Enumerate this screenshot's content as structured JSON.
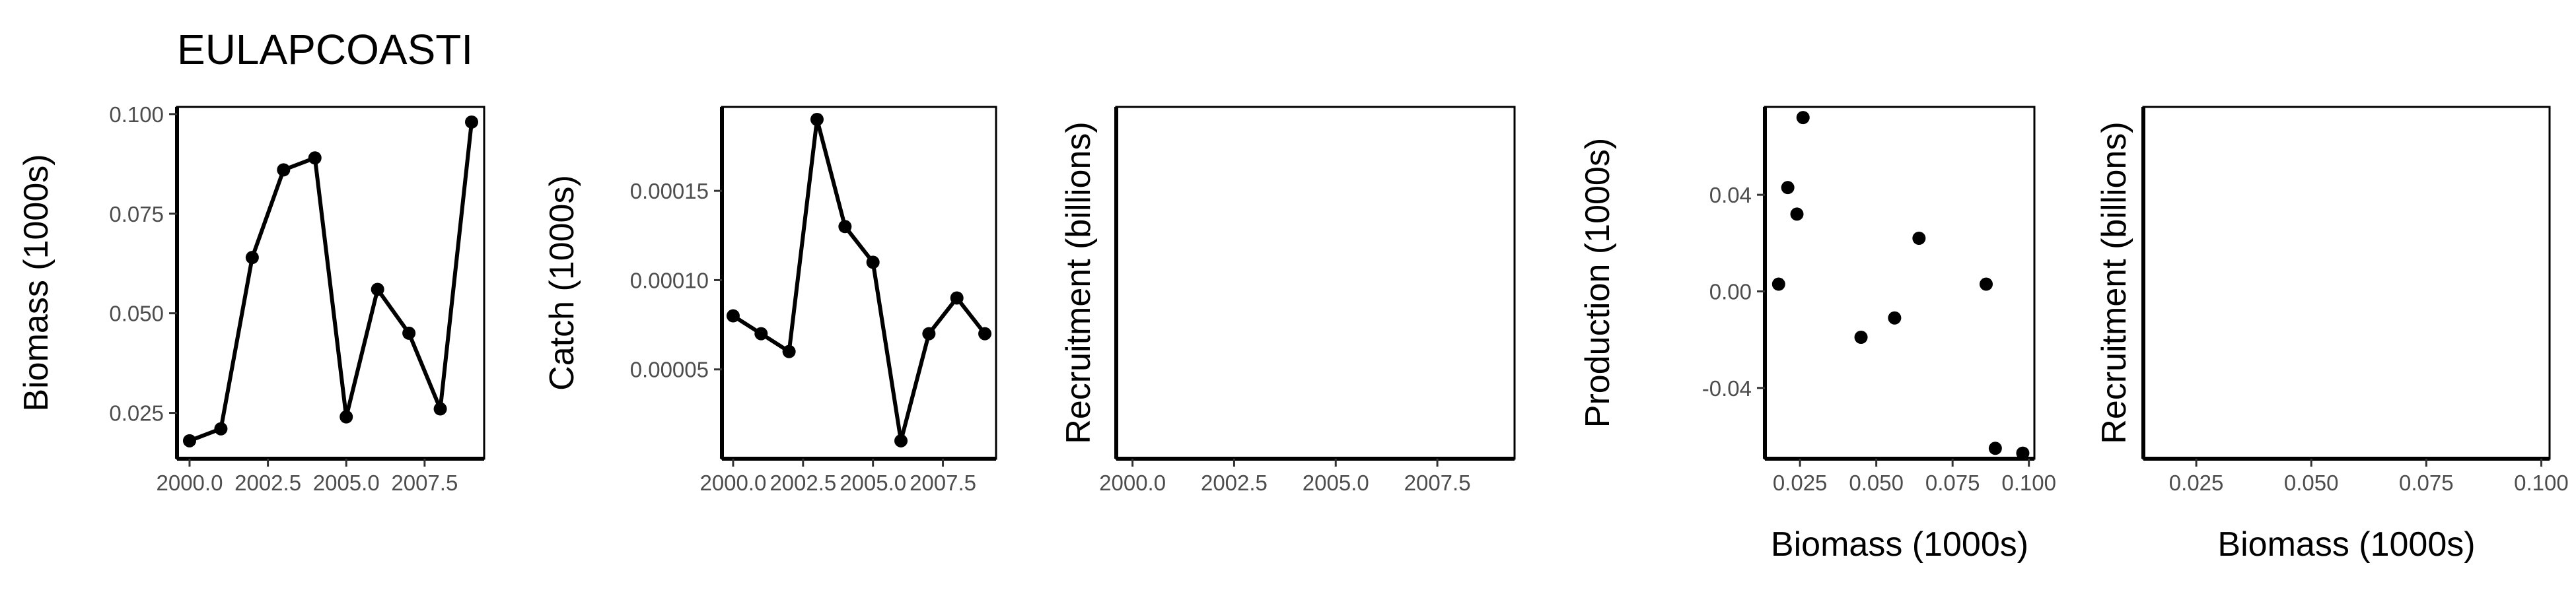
{
  "title": "EULAPCOASTI",
  "chart_data": [
    {
      "type": "line",
      "xlabel": "",
      "ylabel": "Biomass (1000s)",
      "xlim": [
        1999.6,
        2009.4
      ],
      "ylim": [
        0.0135,
        0.1018
      ],
      "xticks": [
        "2000.0",
        "2002.5",
        "2005.0",
        "2007.5"
      ],
      "yticks": [
        "0.025",
        "0.050",
        "0.075",
        "0.100"
      ],
      "x": [
        2000,
        2001,
        2002,
        2003,
        2004,
        2005,
        2006,
        2007,
        2008,
        2009
      ],
      "y": [
        0.018,
        0.021,
        0.064,
        0.086,
        0.089,
        0.024,
        0.056,
        0.045,
        0.026,
        0.098
      ]
    },
    {
      "type": "line",
      "xlabel": "",
      "ylabel": "Catch (1000s)",
      "xlim": [
        1999.6,
        2009.4
      ],
      "ylim": [
        0.0,
        0.000197
      ],
      "xticks": [
        "2000.0",
        "2002.5",
        "2005.0",
        "2007.5"
      ],
      "yticks": [
        "0.00005",
        "0.00010",
        "0.00015"
      ],
      "x": [
        2000,
        2001,
        2002,
        2003,
        2004,
        2005,
        2006,
        2007,
        2008,
        2009
      ],
      "y": [
        8e-05,
        7e-05,
        6e-05,
        0.00019,
        0.00013,
        0.00011,
        1e-05,
        7e-05,
        9e-05,
        7e-05
      ]
    },
    {
      "type": "line",
      "xlabel": "",
      "ylabel": "Recruitment (billions)",
      "xlim": [
        1999.6,
        2009.4
      ],
      "xticks": [
        "2000.0",
        "2002.5",
        "2005.0",
        "2007.5"
      ],
      "yticks": [],
      "x": [],
      "y": []
    },
    {
      "type": "scatter",
      "xlabel": "Biomass (1000s)",
      "ylabel": "Production (1000s)",
      "xlim": [
        0.0135,
        0.1018
      ],
      "ylim": [
        -0.0693,
        0.0764
      ],
      "xticks": [
        "0.025",
        "0.050",
        "0.075",
        "0.100"
      ],
      "yticks": [
        "-0.04",
        "0.00",
        "0.04"
      ],
      "x": [
        0.018,
        0.021,
        0.024,
        0.026,
        0.045,
        0.056,
        0.064,
        0.086,
        0.089,
        0.098
      ],
      "y": [
        0.003,
        0.043,
        0.032,
        0.072,
        -0.019,
        -0.011,
        0.022,
        0.003,
        -0.065,
        -0.067
      ]
    },
    {
      "type": "scatter",
      "xlabel": "Biomass (1000s)",
      "ylabel": "Recruitment (billions)",
      "xlim": [
        0.0135,
        0.1018
      ],
      "xticks": [
        "0.025",
        "0.050",
        "0.075",
        "0.100"
      ],
      "yticks": [],
      "x": [],
      "y": []
    }
  ]
}
